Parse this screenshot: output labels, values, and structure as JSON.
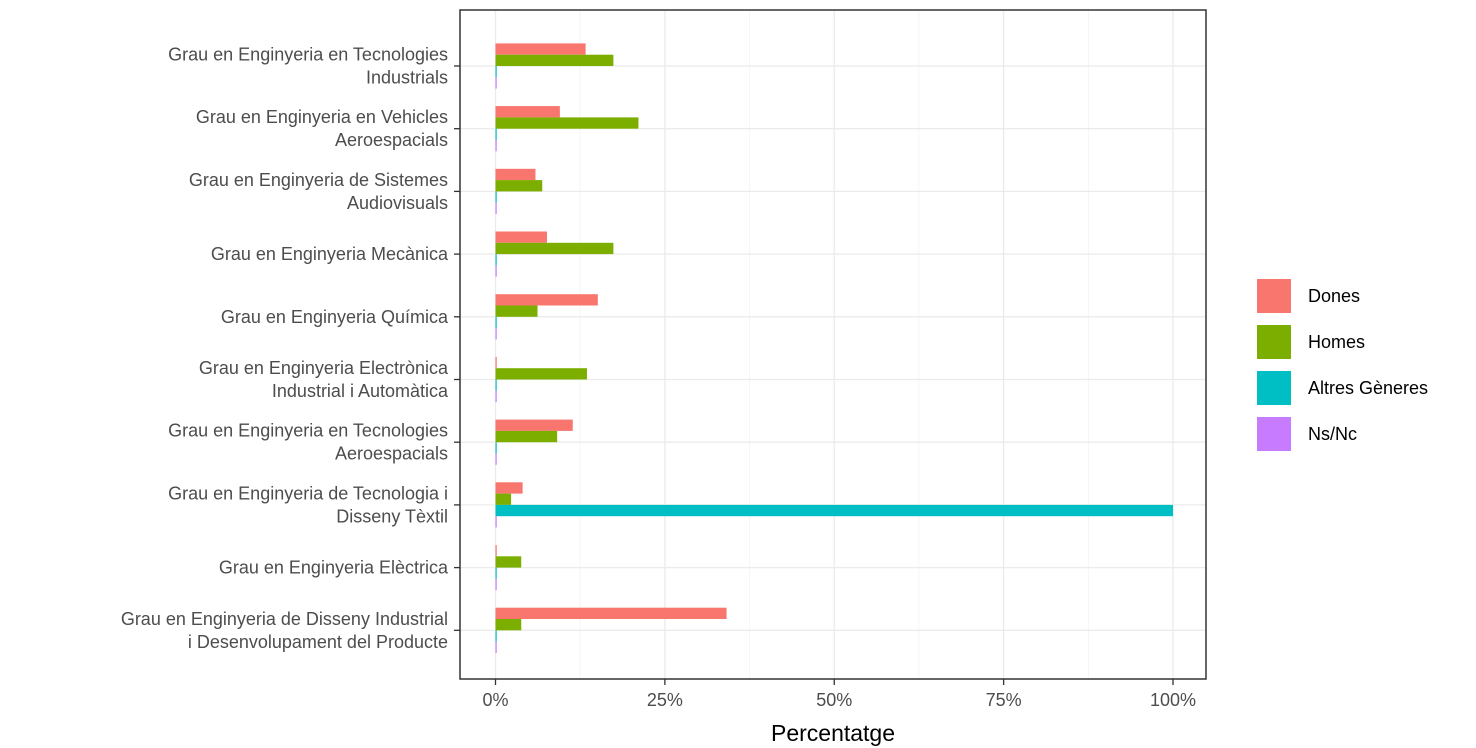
{
  "chart_data": {
    "type": "bar",
    "orientation": "horizontal",
    "title": "",
    "xlabel": "Percentatge",
    "ylabel": "",
    "xlim": [
      0,
      100
    ],
    "x_ticks": [
      0,
      25,
      50,
      75,
      100
    ],
    "x_tick_labels": [
      "0%",
      "25%",
      "50%",
      "75%",
      "100%"
    ],
    "grid": true,
    "legend_position": "right",
    "categories": [
      "Grau en Enginyeria en Tecnologies\nIndustrials",
      "Grau en Enginyeria en Vehicles\nAeroespacials",
      "Grau en Enginyeria de Sistemes\nAudiovisuals",
      "Grau en Enginyeria Mecànica",
      "Grau en Enginyeria Química",
      "Grau en Enginyeria Electrònica\nIndustrial i Automàtica",
      "Grau en Enginyeria en Tecnologies\nAeroespacials",
      "Grau en Enginyeria de Tecnologia i\nDisseny Tèxtil",
      "Grau en Enginyeria Elèctrica",
      "Grau en Enginyeria de Disseny Industrial\ni Desenvolupament del Producte"
    ],
    "series": [
      {
        "name": "Dones",
        "color": "#F8766D",
        "values": [
          13.3,
          9.5,
          5.9,
          7.6,
          15.1,
          0.1,
          11.4,
          4.0,
          0.1,
          34.1
        ]
      },
      {
        "name": "Homes",
        "color": "#7CAE00",
        "values": [
          17.4,
          21.1,
          6.9,
          17.4,
          6.2,
          13.5,
          9.1,
          2.3,
          3.8,
          3.8
        ]
      },
      {
        "name": "Altres Gèneres",
        "color": "#00BFC4",
        "values": [
          0.1,
          0.1,
          0.1,
          0.1,
          0.1,
          0.1,
          0.1,
          100,
          0.1,
          0.1
        ]
      },
      {
        "name": "Ns/Nc",
        "color": "#C77CFF",
        "values": [
          0.1,
          0.1,
          0.1,
          0.1,
          0.1,
          0.1,
          0.1,
          0.1,
          0.1,
          0.1
        ]
      }
    ]
  }
}
